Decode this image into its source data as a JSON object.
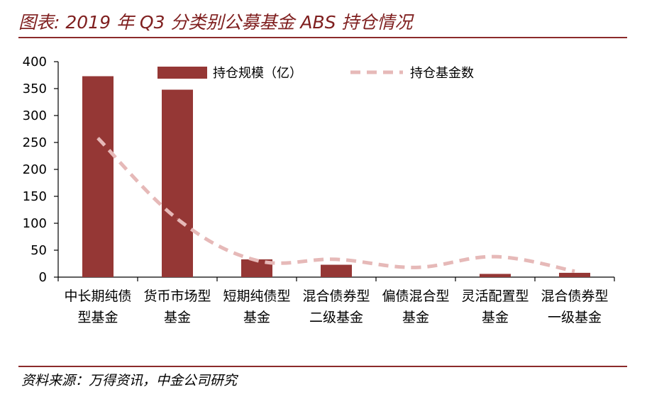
{
  "figure_title": "图表: 2019 年 Q3 分类别公募基金 ABS 持仓情况",
  "source_note": "资料来源：万得资讯，中金公司研究",
  "colors": {
    "bar": "#953735",
    "line": "#e6b9b8",
    "rule": "#8b2a2a",
    "title": "#7f1f1f"
  },
  "chart_data": {
    "type": "bar",
    "title": "",
    "xlabel": "",
    "ylabel": "",
    "ylim": [
      0,
      400
    ],
    "yticks": [
      0,
      50,
      100,
      150,
      200,
      250,
      300,
      350,
      400
    ],
    "grid": false,
    "legend_position": "top",
    "categories": [
      [
        "中长期纯债",
        "型基金"
      ],
      [
        "货币市场型",
        "基金"
      ],
      [
        "短期纯债型",
        "基金"
      ],
      [
        "混合债券型",
        "二级基金"
      ],
      [
        "偏债混合型",
        "基金"
      ],
      [
        "灵活配置型",
        "基金"
      ],
      [
        "混合债券型",
        "一级基金"
      ]
    ],
    "series": [
      {
        "name": "持仓规模（亿）",
        "kind": "bar",
        "values": [
          373,
          348,
          33,
          23,
          0,
          6,
          8
        ]
      },
      {
        "name": "持仓基金数",
        "kind": "line-dashed",
        "values": [
          258,
          108,
          31,
          33,
          18,
          38,
          11
        ]
      }
    ]
  }
}
